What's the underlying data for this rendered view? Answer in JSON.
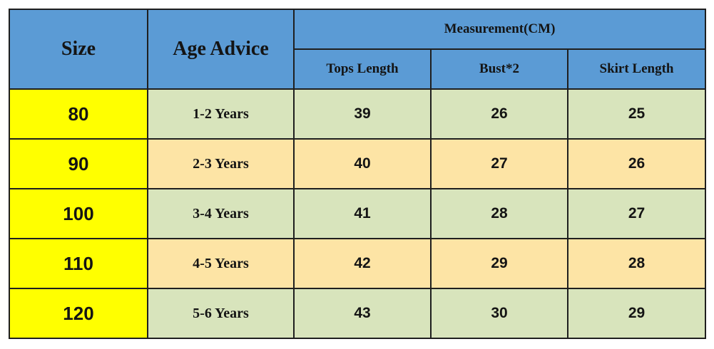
{
  "table": {
    "headers": {
      "size": "Size",
      "age": "Age Advice",
      "measurement": "Measurement(CM)",
      "tops_length": "Tops Length",
      "bust": "Bust*2",
      "skirt_length": "Skirt Length"
    },
    "rows": [
      {
        "size": "80",
        "age": "1-2 Years",
        "tops_length": "39",
        "bust": "26",
        "skirt_length": "25"
      },
      {
        "size": "90",
        "age": "2-3 Years",
        "tops_length": "40",
        "bust": "27",
        "skirt_length": "26"
      },
      {
        "size": "100",
        "age": "3-4 Years",
        "tops_length": "41",
        "bust": "28",
        "skirt_length": "27"
      },
      {
        "size": "110",
        "age": "4-5 Years",
        "tops_length": "42",
        "bust": "29",
        "skirt_length": "28"
      },
      {
        "size": "120",
        "age": "5-6 Years",
        "tops_length": "43",
        "bust": "30",
        "skirt_length": "29"
      }
    ],
    "colors": {
      "header_blue": "#5b9bd5",
      "size_yellow": "#ffff00",
      "row_green": "#d8e4bc",
      "row_tan": "#fde4a5"
    }
  }
}
